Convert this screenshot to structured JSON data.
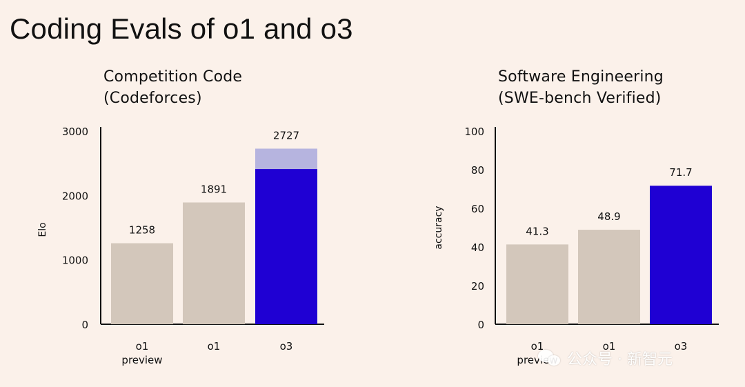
{
  "page": {
    "title": "Coding Evals of o1 and o3"
  },
  "watermark": {
    "text": "公众号 · 新智元",
    "icon": "wechat-icon"
  },
  "colors": {
    "background": "#fbf1ea",
    "gray_bar": "#d3c7bb",
    "blue_bar": "#1f00d3",
    "blue_light": "#b6b4df",
    "axis": "#111111"
  },
  "chart_data": [
    {
      "type": "bar",
      "title_lines": [
        "Competition Code",
        "(Codeforces)"
      ],
      "xlabel": "",
      "ylabel": "Elo",
      "ylim": [
        0,
        3000
      ],
      "yticks": [
        0,
        1000,
        2000,
        3000
      ],
      "categories": [
        {
          "lines": [
            "o1",
            "preview"
          ]
        },
        {
          "lines": [
            "o1"
          ]
        },
        {
          "lines": [
            "o3"
          ]
        }
      ],
      "values": [
        1258,
        1891,
        2727
      ],
      "value_labels": [
        "1258",
        "1891",
        "2727"
      ],
      "colors": [
        "#d3c7bb",
        "#d3c7bb",
        "#1f00d3"
      ],
      "highlight": {
        "index": 2,
        "solid_to": 2410,
        "light_color": "#b6b4df"
      }
    },
    {
      "type": "bar",
      "title_lines": [
        "Software Engineering",
        "(SWE-bench Verified)"
      ],
      "xlabel": "",
      "ylabel": "accuracy",
      "ylim": [
        0,
        100
      ],
      "yticks": [
        0,
        20,
        40,
        60,
        80,
        100
      ],
      "categories": [
        {
          "lines": [
            "o1",
            "preview"
          ]
        },
        {
          "lines": [
            "o1"
          ]
        },
        {
          "lines": [
            "o3"
          ]
        }
      ],
      "values": [
        41.3,
        48.9,
        71.7
      ],
      "value_labels": [
        "41.3",
        "48.9",
        "71.7"
      ],
      "colors": [
        "#d3c7bb",
        "#d3c7bb",
        "#1f00d3"
      ]
    }
  ]
}
